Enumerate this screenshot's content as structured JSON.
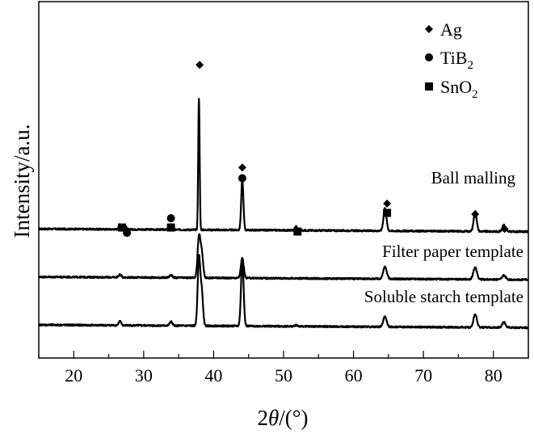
{
  "chart_data": {
    "type": "line",
    "xlabel_prefix": "2",
    "xlabel_symbol": "θ",
    "xlabel_suffix": "/(°)",
    "ylabel": "Intensity/a.u.",
    "xlim": [
      15,
      85
    ],
    "x_ticks": [
      "20",
      "30",
      "40",
      "50",
      "60",
      "70",
      "80"
    ],
    "y_ticks_labeled": false,
    "grid": false,
    "legend_position": "top-right",
    "legend": [
      {
        "marker": "diamond",
        "label": "Ag",
        "sub": ""
      },
      {
        "marker": "circle",
        "label": "TiB",
        "sub": "2"
      },
      {
        "marker": "square",
        "label": "SnO",
        "sub": "2"
      }
    ],
    "series": [
      {
        "name": "Ball malling",
        "baseline": 0.72,
        "peaks": [
          {
            "x": 26.6,
            "h": 0.04
          },
          {
            "x": 27.4,
            "h": 0.02
          },
          {
            "x": 33.9,
            "h": 0.04
          },
          {
            "x": 37.9,
            "h": 1.0
          },
          {
            "x": 44.1,
            "h": 0.38
          },
          {
            "x": 51.8,
            "h": 0.03
          },
          {
            "x": 64.5,
            "h": 0.17
          },
          {
            "x": 77.4,
            "h": 0.15
          },
          {
            "x": 81.5,
            "h": 0.05
          }
        ],
        "markers": [
          {
            "x": 26.9,
            "marker": "square",
            "level": 0.73
          },
          {
            "x": 27.6,
            "marker": "circle",
            "level": 0.69
          },
          {
            "x": 33.9,
            "marker": "circle",
            "level": 0.8
          },
          {
            "x": 33.9,
            "marker": "square",
            "level": 0.73
          },
          {
            "x": 38.0,
            "marker": "diamond",
            "level": 1.95
          },
          {
            "x": 44.1,
            "marker": "diamond",
            "level": 1.18
          },
          {
            "x": 44.1,
            "marker": "circle",
            "level": 1.1
          },
          {
            "x": 52.0,
            "marker": "square",
            "level": 0.7
          },
          {
            "x": 64.8,
            "marker": "diamond",
            "level": 0.91
          },
          {
            "x": 64.8,
            "marker": "square",
            "level": 0.84
          },
          {
            "x": 77.4,
            "marker": "diamond",
            "level": 0.83
          },
          {
            "x": 81.6,
            "marker": "diamond",
            "level": 0.72
          }
        ]
      },
      {
        "name": "Filter paper template",
        "baseline": 0.36,
        "peaks": [
          {
            "x": 26.6,
            "h": 0.02
          },
          {
            "x": 33.9,
            "h": 0.02
          },
          {
            "x": 37.9,
            "h": 0.3
          },
          {
            "x": 38.3,
            "h": 0.18
          },
          {
            "x": 44.1,
            "h": 0.15
          },
          {
            "x": 64.5,
            "h": 0.09
          },
          {
            "x": 77.4,
            "h": 0.09
          },
          {
            "x": 81.5,
            "h": 0.03
          }
        ],
        "markers": []
      },
      {
        "name": "Soluble starch template",
        "baseline": 0.0,
        "peaks": [
          {
            "x": 26.6,
            "h": 0.03
          },
          {
            "x": 33.9,
            "h": 0.03
          },
          {
            "x": 37.9,
            "h": 0.5
          },
          {
            "x": 38.3,
            "h": 0.25
          },
          {
            "x": 44.1,
            "h": 0.5
          },
          {
            "x": 51.8,
            "h": 0.01
          },
          {
            "x": 64.5,
            "h": 0.08
          },
          {
            "x": 77.4,
            "h": 0.1
          },
          {
            "x": 81.5,
            "h": 0.04
          }
        ],
        "markers": []
      }
    ]
  }
}
